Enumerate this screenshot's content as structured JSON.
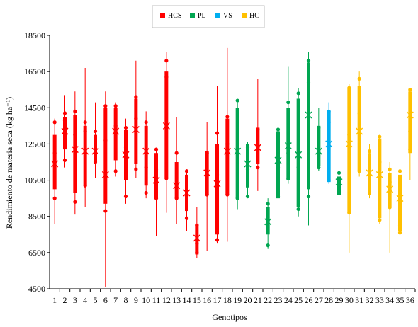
{
  "chart_data": {
    "type": "boxplot",
    "xlabel": "Genotipos",
    "ylabel": "Rendimiento de materia seca (kg ha⁻¹)",
    "ylim": [
      4500,
      18500
    ],
    "yticks": [
      4500,
      6500,
      8500,
      10500,
      12500,
      14500,
      16500,
      18500
    ],
    "ytick_labels": [
      "4500",
      "6500",
      "8500",
      "10500",
      "12500",
      "14500",
      "16500",
      "18500"
    ],
    "grid": false,
    "legend_position": "top-center",
    "legend": [
      {
        "name": "HCS",
        "color": "#ff0000"
      },
      {
        "name": "PL",
        "color": "#00a651"
      },
      {
        "name": "VS",
        "color": "#00aeef"
      },
      {
        "name": "HC",
        "color": "#ffc000"
      }
    ],
    "categories": [
      "1",
      "2",
      "3",
      "4",
      "5",
      "6",
      "7",
      "8",
      "9",
      "10",
      "11",
      "12",
      "13",
      "14",
      "15",
      "16",
      "17",
      "18",
      "19",
      "20",
      "21",
      "22",
      "23",
      "24",
      "25",
      "26",
      "27",
      "28",
      "29",
      "30",
      "31",
      "32",
      "33",
      "34",
      "35",
      "36"
    ],
    "groups": [
      "HCS",
      "HCS",
      "HCS",
      "HCS",
      "HCS",
      "HCS",
      "HCS",
      "HCS",
      "HCS",
      "HCS",
      "HCS",
      "HCS",
      "HCS",
      "HCS",
      "HCS",
      "HCS",
      "HCS",
      "HCS",
      "PL",
      "PL",
      "HCS",
      "PL",
      "PL",
      "PL",
      "PL",
      "PL",
      "PL",
      "VS",
      "PL",
      "HC",
      "HC",
      "HC",
      "HC",
      "HC",
      "HC",
      "HC"
    ],
    "boxes": [
      {
        "min": 8100,
        "q1": 10000,
        "q3": 13000,
        "max": 13900,
        "mean": 11400,
        "outliers": [
          9500,
          12000,
          13700
        ]
      },
      {
        "min": 11200,
        "q1": 12200,
        "q3": 14000,
        "max": 15200,
        "mean": 13200,
        "outliers": [
          11600,
          13800,
          14200
        ]
      },
      {
        "min": 8600,
        "q1": 9800,
        "q3": 14100,
        "max": 15400,
        "mean": 12200,
        "outliers": [
          9300,
          13000,
          14300
        ]
      },
      {
        "min": 9000,
        "q1": 10200,
        "q3": 13500,
        "max": 16700,
        "mean": 12100,
        "outliers": [
          10200,
          13200,
          13700
        ]
      },
      {
        "min": 10600,
        "q1": 11500,
        "q3": 13000,
        "max": 14800,
        "mean": 12100,
        "outliers": [
          11500,
          12200,
          13200
        ]
      },
      {
        "min": 4600,
        "q1": 9200,
        "q3": 14500,
        "max": 15400,
        "mean": 10800,
        "outliers": [
          8800,
          12700,
          14600
        ]
      },
      {
        "min": 10700,
        "q1": 11600,
        "q3": 14500,
        "max": 14800,
        "mean": 13200,
        "outliers": [
          11000,
          13500,
          14600
        ]
      },
      {
        "min": 9200,
        "q1": 10500,
        "q3": 13300,
        "max": 13900,
        "mean": 11900,
        "outliers": [
          9600,
          12300,
          13400
        ]
      },
      {
        "min": 10600,
        "q1": 11400,
        "q3": 15000,
        "max": 17100,
        "mean": 13300,
        "outliers": [
          11100,
          13900,
          15100
        ]
      },
      {
        "min": 9500,
        "q1": 10200,
        "q3": 13500,
        "max": 14300,
        "mean": 12100,
        "outliers": [
          9800,
          11200,
          13700
        ]
      },
      {
        "min": 7400,
        "q1": 9500,
        "q3": 12000,
        "max": 12300,
        "mean": 10500,
        "outliers": [
          9500,
          11100,
          12200
        ]
      },
      {
        "min": 8700,
        "q1": 10600,
        "q3": 16500,
        "max": 17600,
        "mean": 13500,
        "outliers": [
          10600,
          16200,
          17100
        ]
      },
      {
        "min": 8100,
        "q1": 9500,
        "q3": 11500,
        "max": 14000,
        "mean": 10200,
        "outliers": [
          9500,
          10300,
          12000
        ]
      },
      {
        "min": 7700,
        "q1": 8800,
        "q3": 10800,
        "max": 11100,
        "mean": 9800,
        "outliers": [
          8400,
          9600,
          11000
        ]
      },
      {
        "min": 6200,
        "q1": 6400,
        "q3": 8100,
        "max": 9000,
        "mean": 7300,
        "outliers": [
          6500,
          7000,
          8000
        ]
      },
      {
        "min": 6600,
        "q1": 9700,
        "q3": 12100,
        "max": 13700,
        "mean": 10900,
        "outliers": [
          9700,
          11000,
          12000
        ]
      },
      {
        "min": 7000,
        "q1": 7500,
        "q3": 12500,
        "max": 15700,
        "mean": 10300,
        "outliers": [
          7200,
          10800,
          13100
        ]
      },
      {
        "min": 7100,
        "q1": 9700,
        "q3": 13900,
        "max": 17800,
        "mean": 12100,
        "outliers": [
          9700,
          12500,
          14000
        ]
      },
      {
        "min": 8900,
        "q1": 9500,
        "q3": 14500,
        "max": 14800,
        "mean": 12100,
        "outliers": [
          9500,
          12000,
          14900
        ]
      },
      {
        "min": 9500,
        "q1": 10100,
        "q3": 12500,
        "max": 12600,
        "mean": 11400,
        "outliers": [
          9600,
          11100,
          12300
        ]
      },
      {
        "min": 9900,
        "q1": 11400,
        "q3": 13400,
        "max": 16100,
        "mean": 12300,
        "outliers": [
          11200,
          12300,
          13300
        ]
      },
      {
        "min": 6700,
        "q1": 7500,
        "q3": 9000,
        "max": 9500,
        "mean": 8200,
        "outliers": [
          6900,
          8100,
          9200
        ]
      },
      {
        "min": 9000,
        "q1": 9500,
        "q3": 13200,
        "max": 13400,
        "mean": 11600,
        "outliers": [
          9600,
          11200,
          13300
        ]
      },
      {
        "min": 10300,
        "q1": 10500,
        "q3": 14500,
        "max": 16800,
        "mean": 12400,
        "outliers": [
          10600,
          12000,
          14800
        ]
      },
      {
        "min": 8500,
        "q1": 9000,
        "q3": 15000,
        "max": 15600,
        "mean": 11900,
        "outliers": [
          8900,
          11200,
          15300
        ]
      },
      {
        "min": 8000,
        "q1": 10000,
        "q3": 17000,
        "max": 17600,
        "mean": 14100,
        "outliers": [
          9600,
          15900,
          17100
        ]
      },
      {
        "min": 11000,
        "q1": 11300,
        "q3": 13500,
        "max": 14500,
        "mean": 12100,
        "outliers": [
          11200,
          12000,
          13400
        ]
      },
      {
        "min": 10300,
        "q1": 10400,
        "q3": 14300,
        "max": 14800,
        "mean": 12500,
        "outliers": [
          10500,
          13700,
          14300
        ]
      },
      {
        "min": 8000,
        "q1": 9700,
        "q3": 10700,
        "max": 11800,
        "mean": 10400,
        "outliers": [
          9800,
          10300,
          10900
        ]
      },
      {
        "min": 6500,
        "q1": 8700,
        "q3": 15600,
        "max": 15800,
        "mean": 12500,
        "outliers": [
          8700,
          13000,
          15600
        ]
      },
      {
        "min": 10700,
        "q1": 11000,
        "q3": 15700,
        "max": 16500,
        "mean": 13200,
        "outliers": [
          11000,
          14200,
          16100
        ]
      },
      {
        "min": 9500,
        "q1": 9700,
        "q3": 12000,
        "max": 12500,
        "mean": 10900,
        "outliers": [
          9800,
          10800,
          12100
        ]
      },
      {
        "min": 8100,
        "q1": 8400,
        "q3": 12800,
        "max": 13000,
        "mean": 10800,
        "outliers": [
          8300,
          11500,
          12900
        ]
      },
      {
        "min": 6500,
        "q1": 9000,
        "q3": 10900,
        "max": 11500,
        "mean": 10000,
        "outliers": [
          9000,
          10400,
          11100
        ]
      },
      {
        "min": 7500,
        "q1": 7700,
        "q3": 10800,
        "max": 12000,
        "mean": 9500,
        "outliers": [
          7600,
          8000,
          11000
        ]
      },
      {
        "min": 10500,
        "q1": 12000,
        "q3": 15400,
        "max": 15600,
        "mean": 14100,
        "outliers": [
          12200,
          13200,
          15500
        ]
      }
    ]
  }
}
